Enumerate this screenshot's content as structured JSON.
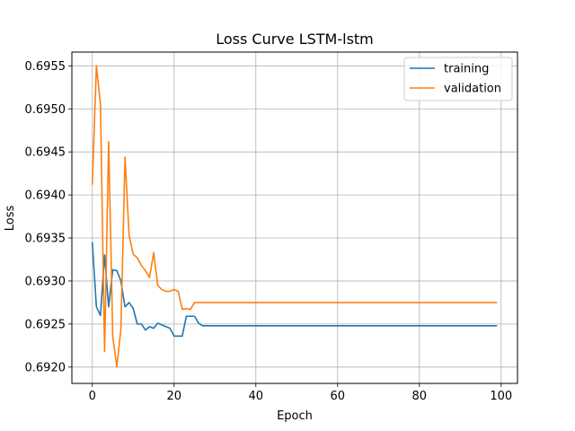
{
  "chart_data": {
    "type": "line",
    "title": "Loss Curve LSTM-lstm",
    "xlabel": "Epoch",
    "ylabel": "Loss",
    "xlim": [
      -5,
      104
    ],
    "ylim": [
      0.69181,
      0.69566
    ],
    "xticks": [
      0,
      20,
      40,
      60,
      80,
      100
    ],
    "yticks": [
      0.692,
      0.6925,
      0.693,
      0.6935,
      0.694,
      0.6945,
      0.695,
      0.6955
    ],
    "ytick_labels": [
      "0.6920",
      "0.6925",
      "0.6930",
      "0.6935",
      "0.6940",
      "0.6945",
      "0.6950",
      "0.6955"
    ],
    "grid": true,
    "legend_position": "top-right",
    "series": [
      {
        "name": "training",
        "color": "#1f77b4",
        "x": [
          0,
          1,
          2,
          3,
          4,
          5,
          6,
          7,
          8,
          9,
          10,
          11,
          12,
          13,
          14,
          15,
          16,
          17,
          18,
          19,
          20,
          21,
          22,
          23,
          24,
          25,
          26,
          27,
          28,
          29,
          30,
          40,
          50,
          60,
          70,
          80,
          90,
          99
        ],
        "y": [
          0.69345,
          0.6927,
          0.6926,
          0.6933,
          0.6927,
          0.69313,
          0.69312,
          0.693,
          0.6927,
          0.69275,
          0.69268,
          0.6925,
          0.6925,
          0.69243,
          0.69247,
          0.69245,
          0.69251,
          0.69249,
          0.69247,
          0.69245,
          0.69236,
          0.69236,
          0.69236,
          0.69259,
          0.69259,
          0.69259,
          0.69251,
          0.69248,
          0.69248,
          0.69248,
          0.69248,
          0.69248,
          0.69248,
          0.69248,
          0.69248,
          0.69248,
          0.69248,
          0.69248
        ]
      },
      {
        "name": "validation",
        "color": "#ff7f0e",
        "x": [
          0,
          1,
          2,
          3,
          4,
          5,
          6,
          7,
          8,
          9,
          10,
          11,
          12,
          13,
          14,
          15,
          16,
          17,
          18,
          19,
          20,
          21,
          22,
          23,
          24,
          25,
          26,
          27,
          28,
          29,
          30,
          35,
          40,
          50,
          60,
          70,
          80,
          90,
          99
        ],
        "y": [
          0.69412,
          0.6955,
          0.69505,
          0.69218,
          0.69462,
          0.69235,
          0.692,
          0.69245,
          0.69444,
          0.69353,
          0.69331,
          0.69327,
          0.69318,
          0.69312,
          0.69304,
          0.69333,
          0.69295,
          0.6929,
          0.69288,
          0.69288,
          0.6929,
          0.69288,
          0.69267,
          0.69268,
          0.69267,
          0.69275,
          0.69275,
          0.69275,
          0.69275,
          0.69275,
          0.69275,
          0.69275,
          0.69275,
          0.69275,
          0.69275,
          0.69275,
          0.69275,
          0.69275,
          0.69275
        ]
      }
    ]
  }
}
